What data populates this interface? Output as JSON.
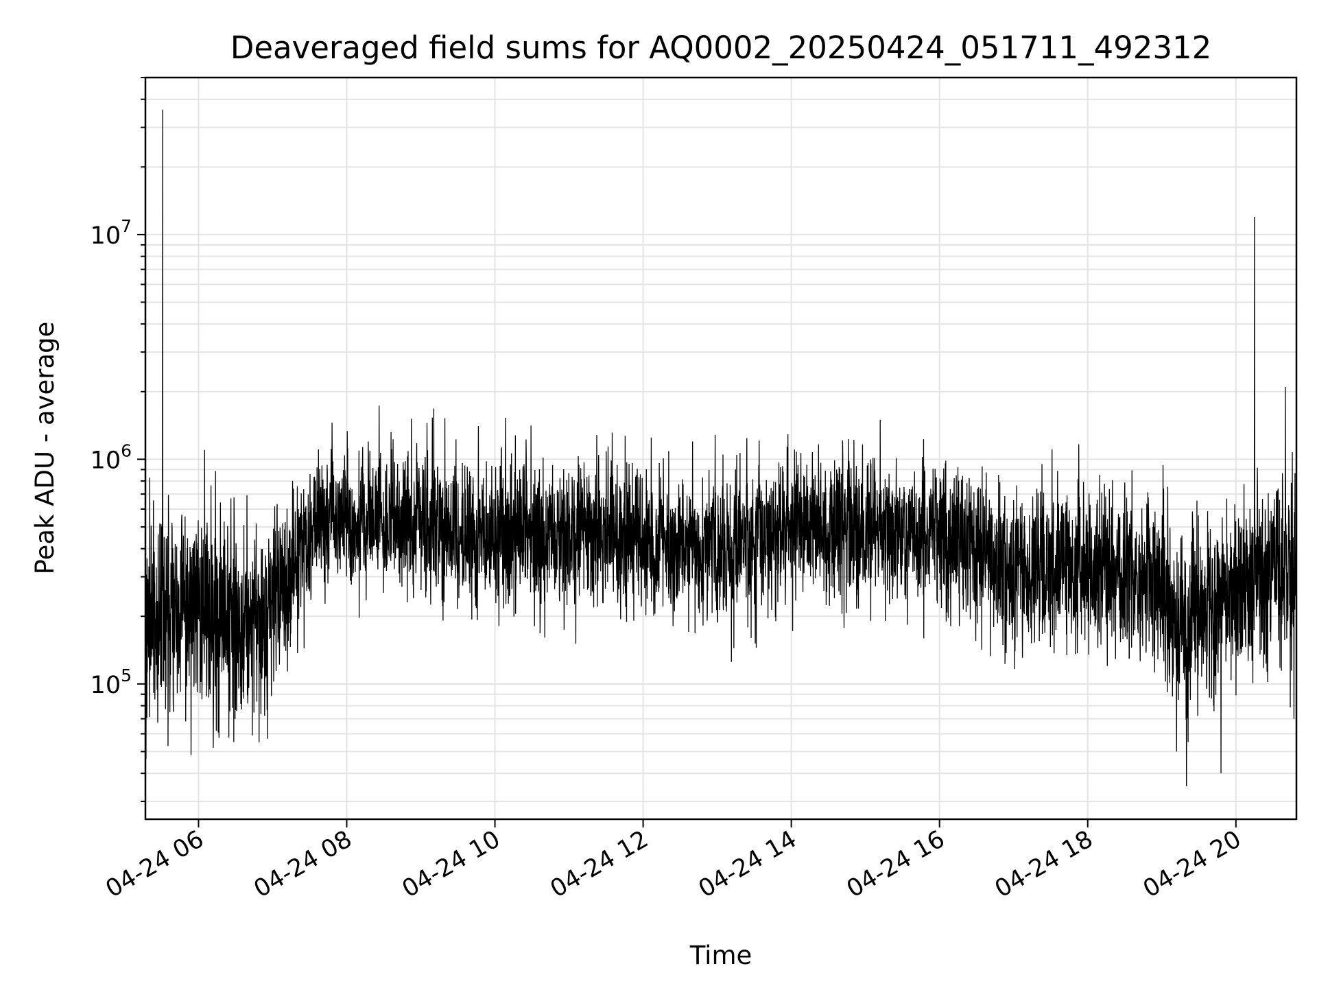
{
  "chart_data": {
    "type": "line",
    "title": "Deaveraged field sums for AQ0002_20250424_051711_492312",
    "xlabel": "Time",
    "ylabel": "Peak ADU - average",
    "xscale": "time",
    "yscale": "log",
    "xlim": [
      "2025-04-24T05:17",
      "2025-04-24T20:49"
    ],
    "ylim": [
      25000,
      50000000
    ],
    "x_ticks": [
      {
        "value": "2025-04-24T06:00",
        "label": "04-24 06"
      },
      {
        "value": "2025-04-24T08:00",
        "label": "04-24 08"
      },
      {
        "value": "2025-04-24T10:00",
        "label": "04-24 10"
      },
      {
        "value": "2025-04-24T12:00",
        "label": "04-24 12"
      },
      {
        "value": "2025-04-24T14:00",
        "label": "04-24 14"
      },
      {
        "value": "2025-04-24T16:00",
        "label": "04-24 16"
      },
      {
        "value": "2025-04-24T18:00",
        "label": "04-24 18"
      },
      {
        "value": "2025-04-24T20:00",
        "label": "04-24 20"
      }
    ],
    "y_ticks": [
      {
        "value": 100000,
        "base": "10",
        "exp": "5"
      },
      {
        "value": 1000000,
        "base": "10",
        "exp": "6"
      },
      {
        "value": 10000000,
        "base": "10",
        "exp": "7"
      }
    ],
    "grid": true,
    "legend": "none",
    "line_color": "#000000",
    "series_envelope": [
      {
        "time": "2025-04-24T05:17",
        "median": 200000,
        "spread": 0.22
      },
      {
        "time": "2025-04-24T06:00",
        "median": 210000,
        "spread": 0.22
      },
      {
        "time": "2025-04-24T06:40",
        "median": 180000,
        "spread": 0.22
      },
      {
        "time": "2025-04-24T07:00",
        "median": 220000,
        "spread": 0.2
      },
      {
        "time": "2025-04-24T07:20",
        "median": 400000,
        "spread": 0.18
      },
      {
        "time": "2025-04-24T07:40",
        "median": 560000,
        "spread": 0.14
      },
      {
        "time": "2025-04-24T09:00",
        "median": 500000,
        "spread": 0.16
      },
      {
        "time": "2025-04-24T10:00",
        "median": 470000,
        "spread": 0.16
      },
      {
        "time": "2025-04-24T11:00",
        "median": 470000,
        "spread": 0.16
      },
      {
        "time": "2025-04-24T12:00",
        "median": 420000,
        "spread": 0.16
      },
      {
        "time": "2025-04-24T13:00",
        "median": 400000,
        "spread": 0.16
      },
      {
        "time": "2025-04-24T14:00",
        "median": 500000,
        "spread": 0.16
      },
      {
        "time": "2025-04-24T15:00",
        "median": 500000,
        "spread": 0.16
      },
      {
        "time": "2025-04-24T16:00",
        "median": 450000,
        "spread": 0.16
      },
      {
        "time": "2025-04-24T17:00",
        "median": 320000,
        "spread": 0.17
      },
      {
        "time": "2025-04-24T18:00",
        "median": 340000,
        "spread": 0.17
      },
      {
        "time": "2025-04-24T18:45",
        "median": 300000,
        "spread": 0.18
      },
      {
        "time": "2025-04-24T19:20",
        "median": 170000,
        "spread": 0.22
      },
      {
        "time": "2025-04-24T20:00",
        "median": 260000,
        "spread": 0.2
      },
      {
        "time": "2025-04-24T20:49",
        "median": 330000,
        "spread": 0.22
      }
    ],
    "spikes": [
      {
        "time": "2025-04-24T05:31",
        "value": 36000000
      },
      {
        "time": "2025-04-24T06:05",
        "value": 1100000
      },
      {
        "time": "2025-04-24T06:12",
        "value": 52000
      },
      {
        "time": "2025-04-24T06:49",
        "value": 55000
      },
      {
        "time": "2025-04-24T09:05",
        "value": 1450000
      },
      {
        "time": "2025-04-24T12:40",
        "value": 1200000
      },
      {
        "time": "2025-04-24T15:12",
        "value": 1500000
      },
      {
        "time": "2025-04-24T19:12",
        "value": 50000
      },
      {
        "time": "2025-04-24T19:20",
        "value": 35000
      },
      {
        "time": "2025-04-24T19:48",
        "value": 40000
      },
      {
        "time": "2025-04-24T20:15",
        "value": 12000000
      },
      {
        "time": "2025-04-24T20:40",
        "value": 2100000
      },
      {
        "time": "2025-04-24T20:47",
        "value": 70000
      }
    ]
  }
}
